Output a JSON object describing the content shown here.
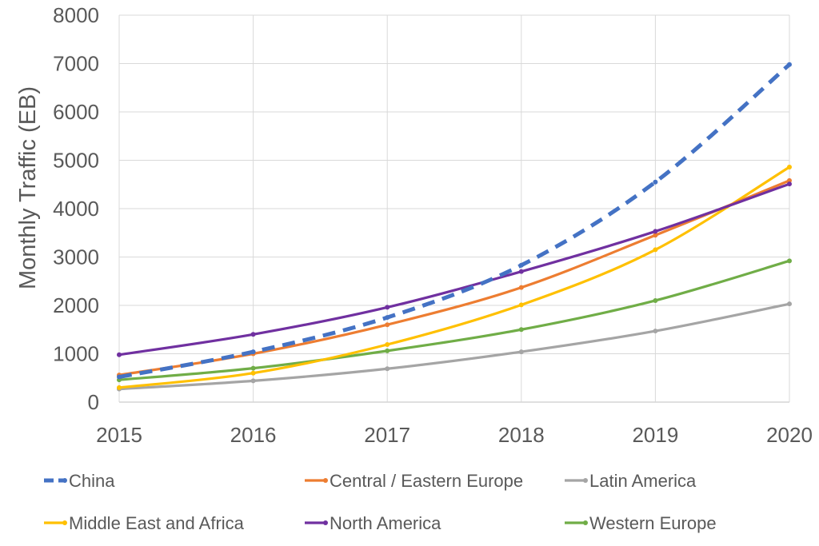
{
  "chart_data": {
    "type": "line",
    "title": "",
    "xlabel": "",
    "ylabel": "Monthly Traffic (EB)",
    "x": [
      "2015",
      "2016",
      "2017",
      "2018",
      "2019",
      "2020"
    ],
    "ylim": [
      0,
      8000
    ],
    "yticks": [
      "0",
      "1000",
      "2000",
      "3000",
      "4000",
      "5000",
      "6000",
      "7000",
      "8000"
    ],
    "grid": true,
    "legend_position": "bottom",
    "series": [
      {
        "name": "China",
        "color": "#4472C4",
        "dashed": true,
        "values": [
          520,
          1040,
          1750,
          2830,
          4550,
          6980
        ]
      },
      {
        "name": "Central / Eastern Europe",
        "color": "#ED7D31",
        "dashed": false,
        "values": [
          560,
          1000,
          1600,
          2370,
          3450,
          4580
        ]
      },
      {
        "name": "Latin America",
        "color": "#A5A5A5",
        "dashed": false,
        "values": [
          270,
          440,
          690,
          1040,
          1470,
          2030
        ]
      },
      {
        "name": "Middle East and Africa",
        "color": "#FFC000",
        "dashed": false,
        "values": [
          300,
          600,
          1190,
          2010,
          3150,
          4860
        ]
      },
      {
        "name": "North America",
        "color": "#7030A0",
        "dashed": false,
        "values": [
          980,
          1400,
          1960,
          2700,
          3530,
          4510
        ]
      },
      {
        "name": "Western Europe",
        "color": "#70AD47",
        "dashed": false,
        "values": [
          460,
          700,
          1060,
          1500,
          2100,
          2920
        ]
      }
    ]
  }
}
